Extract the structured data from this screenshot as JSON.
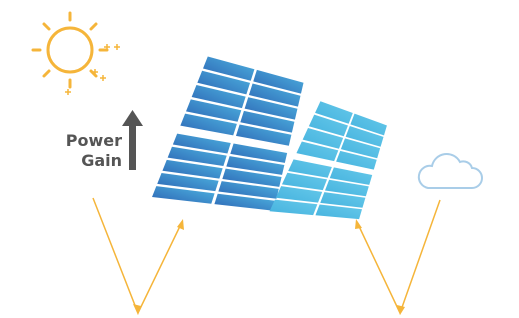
{
  "label": {
    "line1": "Power",
    "line2": "Gain"
  }
}
